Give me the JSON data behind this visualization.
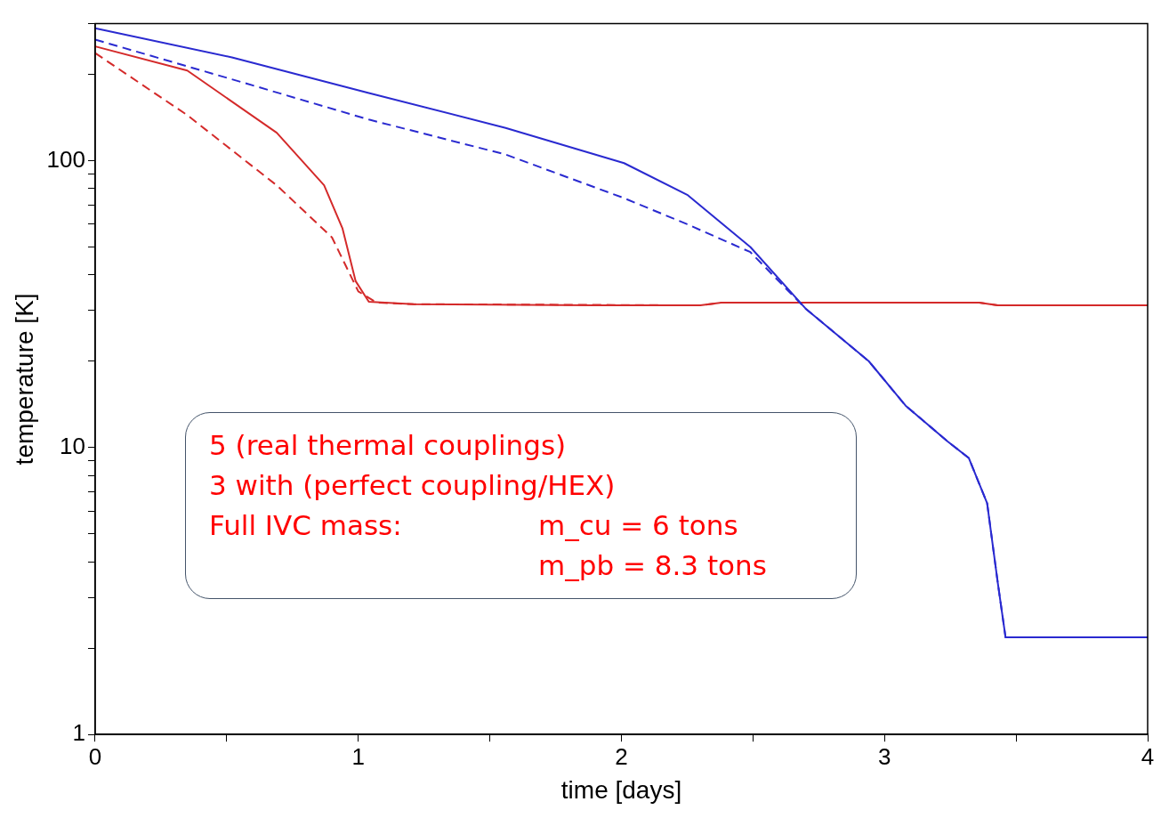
{
  "chart_data": {
    "type": "line",
    "xlabel": "time [days]",
    "ylabel": "temperature [K]",
    "log": "y",
    "xlim": [
      0,
      4
    ],
    "ylim": [
      1,
      300
    ],
    "xticks": [
      0,
      {
        "value": 0.5,
        "label": null
      },
      1,
      {
        "value": 1.5,
        "label": null
      },
      2,
      {
        "value": 2.5,
        "label": null
      },
      3,
      {
        "value": 3.5,
        "label": null
      },
      4
    ],
    "yticks": [
      1,
      {
        "value": 2,
        "label": null
      },
      {
        "value": 3,
        "label": null
      },
      {
        "value": 4,
        "label": null
      },
      {
        "value": 5,
        "label": null
      },
      {
        "value": 6,
        "label": null
      },
      {
        "value": 7,
        "label": null
      },
      {
        "value": 8,
        "label": null
      },
      {
        "value": 9,
        "label": null
      },
      10,
      {
        "value": 20,
        "label": null
      },
      {
        "value": 30,
        "label": null
      },
      {
        "value": 40,
        "label": null
      },
      {
        "value": 50,
        "label": null
      },
      {
        "value": 60,
        "label": null
      },
      {
        "value": 70,
        "label": null
      },
      {
        "value": 80,
        "label": null
      },
      {
        "value": 90,
        "label": null
      },
      100,
      {
        "value": 200,
        "label": null
      },
      {
        "value": 300,
        "label": null
      }
    ],
    "grid": false,
    "legend": false,
    "series": [
      {
        "color": "#2a2ad0",
        "line_style": "solid",
        "x": [
          0,
          0.52,
          1.04,
          1.56,
          2.01,
          2.25,
          2.49,
          2.7,
          2.94,
          3.08,
          3.24,
          3.32,
          3.39,
          3.43,
          3.46,
          4
        ],
        "values": [
          289,
          229,
          172,
          130,
          98,
          76,
          50,
          30.5,
          20,
          14,
          10.5,
          9.2,
          6.4,
          3.4,
          2.18,
          2.18
        ]
      },
      {
        "color": "#2a2ad0",
        "line_style": "dashed",
        "x": [
          0,
          0.52,
          1.04,
          1.56,
          2.01,
          2.25,
          2.49,
          2.7,
          2.94,
          3.08,
          3.24,
          3.32,
          3.39,
          3.43,
          3.46,
          4
        ],
        "values": [
          264,
          192,
          139,
          105,
          74,
          60,
          48,
          30.5,
          20,
          14,
          10.5,
          9.2,
          6.4,
          3.4,
          2.18,
          2.18
        ]
      },
      {
        "color": "#d42a2a",
        "line_style": "solid",
        "x": [
          0,
          0.35,
          0.69,
          0.87,
          0.94,
          0.99,
          1.04,
          1.21,
          1.9,
          2.3,
          2.38,
          3.36,
          3.43,
          4
        ],
        "values": [
          250,
          206,
          125,
          82,
          58,
          38,
          32.2,
          31.6,
          31.3,
          31.3,
          32,
          32,
          31.3,
          31.3
        ]
      },
      {
        "color": "#d42a2a",
        "line_style": "dashed",
        "x": [
          0,
          0.35,
          0.69,
          0.9,
          1.0,
          1.07,
          1.21,
          2.3,
          2.38,
          3.36,
          3.43,
          4
        ],
        "values": [
          237,
          144,
          82,
          54,
          35,
          32,
          31.6,
          31.3,
          32,
          32,
          31.3,
          31.3
        ]
      }
    ],
    "annotations": [
      "5 (real thermal couplings)",
      "3 with (perfect coupling/HEX)",
      "Full IVC mass:",
      "m_cu = 6 tons",
      "m_pb = 8.3 tons"
    ]
  }
}
